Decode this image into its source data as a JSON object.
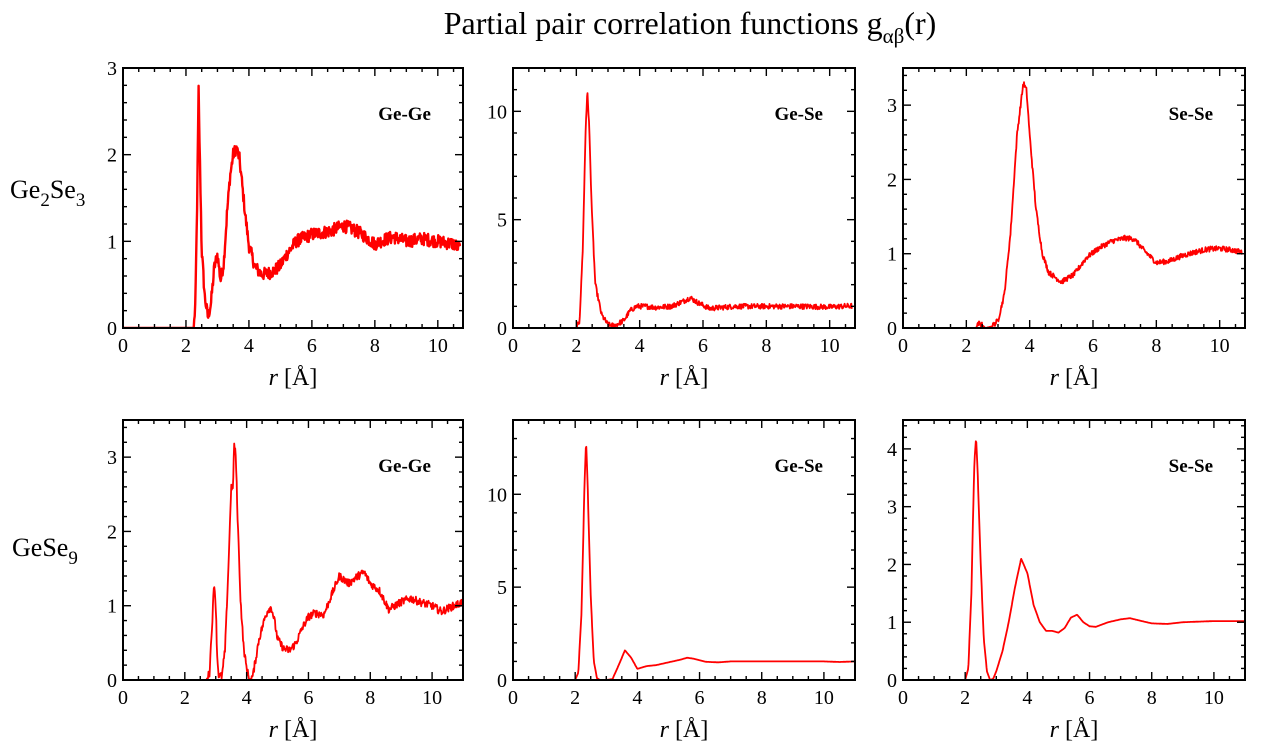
{
  "figure": {
    "title_main": "Partial pair correlation functions g",
    "title_sub": "αβ",
    "title_tail": "(r)",
    "line_color": "#ff0000"
  },
  "rows": [
    {
      "formula": [
        {
          "t": "Ge"
        },
        {
          "t": "2",
          "sub": true
        },
        {
          "t": "Se"
        },
        {
          "t": "3",
          "sub": true
        }
      ]
    },
    {
      "formula": [
        {
          "t": "GeSe"
        },
        {
          "t": "9",
          "sub": true
        }
      ]
    }
  ],
  "chart_data": [
    {
      "type": "line",
      "row": 0,
      "col": 0,
      "title": "Ge-Ge",
      "xlabel_italic": "r",
      "xlabel_unit": "[Å]",
      "xlim": [
        0,
        10.8
      ],
      "ylim": [
        0,
        3
      ],
      "xticks": [
        0,
        2,
        4,
        6,
        8,
        10
      ],
      "yticks": [
        0,
        1,
        2,
        3
      ],
      "noise": 0.05,
      "x": [
        0,
        2.25,
        2.3,
        2.35,
        2.4,
        2.45,
        2.5,
        2.6,
        2.7,
        2.8,
        2.9,
        3.0,
        3.1,
        3.2,
        3.3,
        3.4,
        3.5,
        3.6,
        3.7,
        3.8,
        3.9,
        4.0,
        4.2,
        4.4,
        4.6,
        4.8,
        5.0,
        5.2,
        5.5,
        5.8,
        6.0,
        6.3,
        6.6,
        7.0,
        7.3,
        7.6,
        8.0,
        8.3,
        8.6,
        9.0,
        9.5,
        10.0,
        10.5,
        10.7
      ],
      "y": [
        0,
        0,
        0.3,
        1.3,
        2.75,
        1.8,
        0.9,
        0.35,
        0.12,
        0.3,
        0.7,
        0.85,
        0.55,
        0.75,
        1.3,
        1.75,
        2.0,
        2.08,
        1.95,
        1.6,
        1.25,
        0.95,
        0.7,
        0.62,
        0.63,
        0.66,
        0.72,
        0.85,
        1.0,
        1.05,
        1.08,
        1.1,
        1.12,
        1.18,
        1.14,
        1.08,
        0.97,
        1.02,
        1.05,
        1.0,
        1.03,
        1.0,
        0.97,
        0.92
      ]
    },
    {
      "type": "line",
      "row": 0,
      "col": 1,
      "title": "Ge-Se",
      "xlabel_italic": "r",
      "xlabel_unit": "[Å]",
      "xlim": [
        0,
        10.8
      ],
      "ylim": [
        0,
        12
      ],
      "xticks": [
        0,
        2,
        4,
        6,
        8,
        10
      ],
      "yticks": [
        0,
        5,
        10
      ],
      "noise": 0.02,
      "x": [
        0,
        2.0,
        2.1,
        2.2,
        2.3,
        2.35,
        2.4,
        2.5,
        2.6,
        2.8,
        3.0,
        3.2,
        3.5,
        3.7,
        3.9,
        4.2,
        4.5,
        5.0,
        5.4,
        5.6,
        5.8,
        6.2,
        6.6,
        7.0,
        8.0,
        9.0,
        10.0,
        10.7
      ],
      "y": [
        0,
        0,
        0.3,
        3.5,
        9.5,
        10.9,
        9.5,
        5.0,
        2.0,
        0.6,
        0.15,
        0.1,
        0.35,
        0.8,
        1.0,
        1.0,
        0.95,
        1.0,
        1.25,
        1.4,
        1.2,
        0.9,
        0.95,
        1.0,
        1.0,
        1.0,
        0.97,
        1.02
      ]
    },
    {
      "type": "line",
      "row": 0,
      "col": 2,
      "title": "Se-Se",
      "xlabel_italic": "r",
      "xlabel_unit": "[Å]",
      "xlim": [
        0,
        10.8
      ],
      "ylim": [
        0,
        3.5
      ],
      "xticks": [
        0,
        2,
        4,
        6,
        8,
        10
      ],
      "yticks": [
        0,
        1,
        2,
        3
      ],
      "noise": 0.02,
      "x": [
        0,
        2.3,
        2.4,
        2.5,
        2.6,
        2.8,
        3.0,
        3.2,
        3.4,
        3.6,
        3.8,
        3.9,
        4.0,
        4.2,
        4.4,
        4.6,
        5.0,
        5.4,
        5.8,
        6.2,
        6.6,
        7.0,
        7.3,
        7.6,
        8.0,
        8.4,
        8.8,
        9.2,
        9.6,
        10.0,
        10.4,
        10.7
      ],
      "y": [
        0,
        0,
        0.06,
        0.04,
        0.0,
        0.02,
        0.1,
        0.45,
        1.3,
        2.6,
        3.3,
        3.2,
        2.6,
        1.6,
        1.0,
        0.75,
        0.62,
        0.72,
        0.95,
        1.08,
        1.17,
        1.21,
        1.2,
        1.05,
        0.88,
        0.9,
        0.97,
        1.02,
        1.06,
        1.07,
        1.05,
        1.02
      ]
    },
    {
      "type": "line",
      "row": 1,
      "col": 0,
      "title": "Ge-Ge",
      "xlabel_italic": "r",
      "xlabel_unit": "[Å]",
      "xlim": [
        0,
        11
      ],
      "ylim": [
        0,
        3.5
      ],
      "xticks": [
        0,
        2,
        4,
        6,
        8,
        10
      ],
      "yticks": [
        0,
        1,
        2,
        3
      ],
      "noise": 0.03,
      "x": [
        0,
        2.7,
        2.8,
        2.9,
        2.95,
        3.0,
        3.05,
        3.1,
        3.2,
        3.3,
        3.4,
        3.5,
        3.55,
        3.6,
        3.65,
        3.7,
        3.8,
        3.9,
        4.0,
        4.1,
        4.2,
        4.3,
        4.4,
        4.5,
        4.6,
        4.7,
        4.8,
        4.9,
        5.0,
        5.2,
        5.4,
        5.6,
        5.8,
        6.0,
        6.2,
        6.5,
        6.8,
        7.0,
        7.3,
        7.6,
        7.8,
        8.0,
        8.3,
        8.6,
        9.0,
        9.3,
        9.6,
        10.0,
        10.3,
        10.6,
        11.0
      ],
      "y": [
        0,
        0,
        0.1,
        0.9,
        1.33,
        1.0,
        0.3,
        0.05,
        0.05,
        0.4,
        1.4,
        2.6,
        2.55,
        3.18,
        3.0,
        2.3,
        1.1,
        0.45,
        0.15,
        0.0,
        0.05,
        0.3,
        0.55,
        0.7,
        0.85,
        0.95,
        0.98,
        0.8,
        0.55,
        0.42,
        0.4,
        0.5,
        0.7,
        0.85,
        0.9,
        0.88,
        1.2,
        1.4,
        1.3,
        1.4,
        1.45,
        1.3,
        1.2,
        0.95,
        1.05,
        1.1,
        1.05,
        1.0,
        0.92,
        0.98,
        1.05
      ]
    },
    {
      "type": "line",
      "row": 1,
      "col": 1,
      "title": "Ge-Se",
      "xlabel_italic": "r",
      "xlabel_unit": "[Å]",
      "xlim": [
        0,
        11
      ],
      "ylim": [
        0,
        14
      ],
      "xticks": [
        0,
        2,
        4,
        6,
        8,
        10
      ],
      "yticks": [
        0,
        5,
        10
      ],
      "noise": 0,
      "x": [
        0,
        2.0,
        2.1,
        2.2,
        2.3,
        2.35,
        2.4,
        2.5,
        2.6,
        2.7,
        2.8,
        3.0,
        3.2,
        3.4,
        3.6,
        3.8,
        4.0,
        4.3,
        4.6,
        5.0,
        5.4,
        5.6,
        5.8,
        6.2,
        6.6,
        7.0,
        8.0,
        9.0,
        10.0,
        10.5,
        11.0
      ],
      "y": [
        0,
        0,
        0.4,
        3.5,
        10.5,
        12.9,
        10.5,
        4.5,
        1.0,
        0.1,
        0.0,
        0.0,
        0.05,
        0.8,
        1.6,
        1.2,
        0.6,
        0.75,
        0.8,
        0.95,
        1.1,
        1.2,
        1.15,
        0.98,
        0.95,
        1.0,
        1.0,
        1.0,
        1.0,
        0.97,
        1.0
      ]
    },
    {
      "type": "line",
      "row": 1,
      "col": 2,
      "title": "Se-Se",
      "xlabel_italic": "r",
      "xlabel_unit": "[Å]",
      "xlim": [
        0,
        11
      ],
      "ylim": [
        0,
        4.5
      ],
      "xticks": [
        0,
        2,
        4,
        6,
        8,
        10
      ],
      "yticks": [
        0,
        1,
        2,
        3,
        4
      ],
      "noise": 0,
      "x": [
        0,
        2.0,
        2.1,
        2.2,
        2.25,
        2.3,
        2.35,
        2.4,
        2.5,
        2.6,
        2.7,
        2.8,
        2.9,
        3.0,
        3.2,
        3.4,
        3.6,
        3.8,
        4.0,
        4.2,
        4.4,
        4.6,
        4.8,
        5.0,
        5.2,
        5.4,
        5.6,
        5.8,
        6.0,
        6.2,
        6.6,
        7.0,
        7.3,
        7.6,
        8.0,
        8.5,
        9.0,
        9.5,
        10.0,
        10.5,
        11.0
      ],
      "y": [
        0,
        0,
        0.2,
        1.5,
        2.8,
        3.8,
        4.2,
        3.6,
        2.0,
        0.7,
        0.15,
        0.0,
        0.02,
        0.15,
        0.5,
        1.0,
        1.6,
        2.1,
        1.85,
        1.3,
        1.0,
        0.85,
        0.85,
        0.82,
        0.9,
        1.08,
        1.13,
        1.0,
        0.93,
        0.92,
        1.0,
        1.05,
        1.07,
        1.03,
        0.98,
        0.97,
        1.0,
        1.01,
        1.02,
        1.02,
        1.02
      ]
    }
  ]
}
